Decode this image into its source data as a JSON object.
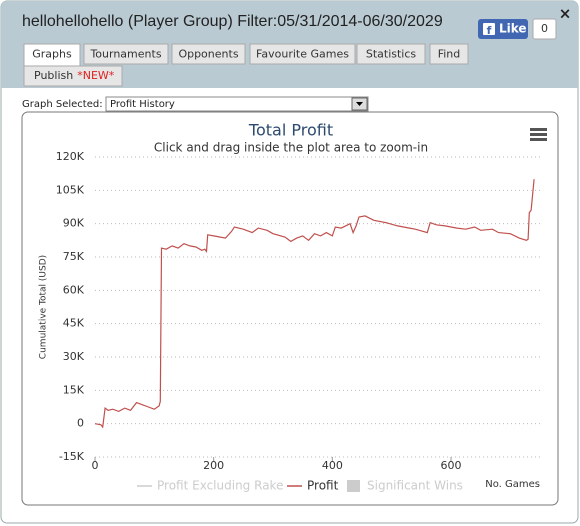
{
  "header": {
    "title": "hellohellohello (Player Group) Filter:05/31/2014-06/30/2029",
    "close": "×",
    "like": {
      "label": "Like",
      "count": 0
    }
  },
  "tabs": [
    "Graphs",
    "Tournaments",
    "Opponents",
    "Favourite Games",
    "Statistics",
    "Find"
  ],
  "publish": {
    "label": "Publish",
    "badge": "*NEW*"
  },
  "graph_selector": {
    "label": "Graph Selected:",
    "value": "Profit History"
  },
  "chart_data": {
    "type": "line",
    "title": "Total Profit",
    "subtitle": "Click and drag inside the plot area to zoom-in",
    "x_label": "No. Games",
    "y_label": "Cumulative Total (USD)",
    "xlim": [
      0,
      750
    ],
    "xticks": [
      0,
      200,
      400,
      600
    ],
    "ylim": [
      -15000,
      120000
    ],
    "yticks": [
      {
        "value": -15000,
        "label": "-15K"
      },
      0,
      {
        "value": 15000,
        "label": "15K"
      },
      {
        "value": 30000,
        "label": "30K"
      },
      {
        "value": 45000,
        "label": "45K"
      },
      {
        "value": 60000,
        "label": "60K"
      },
      {
        "value": 75000,
        "label": "75K"
      },
      {
        "value": 90000,
        "label": "90K"
      },
      {
        "value": 105000,
        "label": "105K"
      },
      {
        "value": 120000,
        "label": "120K"
      }
    ],
    "grid": true,
    "x": [
      0,
      10,
      13,
      17,
      22,
      30,
      40,
      50,
      60,
      70,
      80,
      90,
      100,
      108,
      110,
      112,
      120,
      130,
      140,
      150,
      160,
      170,
      180,
      185,
      188,
      190,
      200,
      210,
      220,
      230,
      235,
      250,
      265,
      275,
      290,
      300,
      320,
      330,
      340,
      350,
      360,
      370,
      380,
      390,
      400,
      405,
      415,
      430,
      435,
      440,
      445,
      455,
      470,
      490,
      510,
      530,
      540,
      560,
      565,
      575,
      590,
      610,
      625,
      640,
      650,
      670,
      680,
      700,
      715,
      727,
      730,
      732,
      735,
      740
    ],
    "series": [
      {
        "name": "Profit Excluding Rake",
        "color": "#cccccc",
        "visible": false,
        "legend_symbol": "line"
      },
      {
        "name": "Profit",
        "color": "#c0504d",
        "visible": true,
        "legend_symbol": "line",
        "values": [
          0,
          -500,
          -1500,
          7000,
          6000,
          6500,
          5500,
          7000,
          6000,
          9500,
          8500,
          7500,
          6500,
          8000,
          10000,
          79000,
          78500,
          80000,
          79000,
          81000,
          80000,
          79500,
          78000,
          78500,
          77500,
          85000,
          84500,
          84000,
          83500,
          86500,
          88500,
          87500,
          86000,
          88000,
          87000,
          85500,
          84000,
          82000,
          83500,
          84500,
          82500,
          85500,
          84500,
          86000,
          84500,
          88500,
          88000,
          90000,
          86000,
          89000,
          93000,
          93500,
          91500,
          90500,
          89000,
          88000,
          87500,
          86000,
          90500,
          89500,
          89000,
          88000,
          87500,
          88500,
          87000,
          87500,
          86000,
          85500,
          83500,
          82500,
          83000,
          95000,
          96000,
          110000
        ]
      },
      {
        "name": "Significant Wins",
        "color": "#cccccc",
        "visible": false,
        "legend_symbol": "box"
      }
    ]
  }
}
